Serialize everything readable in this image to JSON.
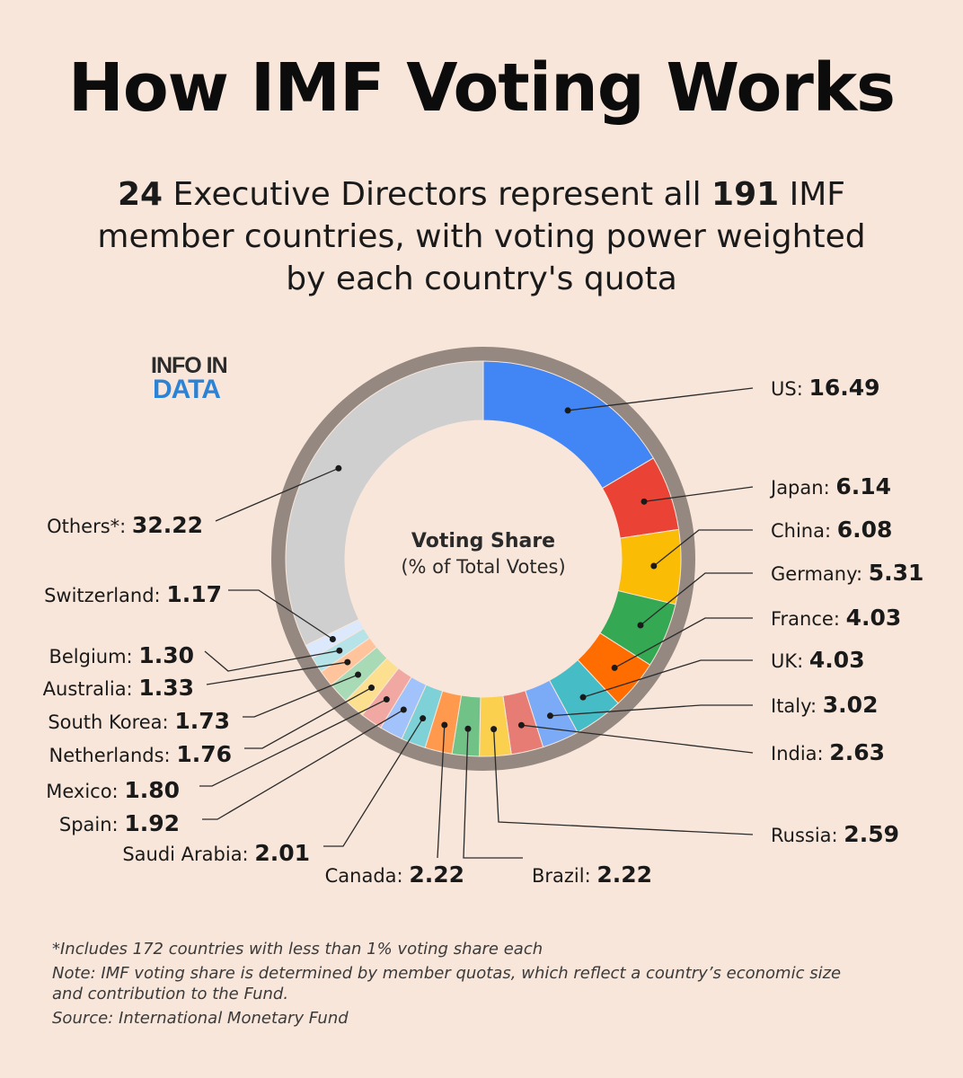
{
  "header": {
    "title": "How IMF Voting Works",
    "subtitle_num1": "24",
    "subtitle_part1": " Executive Directors represent all ",
    "subtitle_num2": "191",
    "subtitle_part2": " IMF member countries, with voting power weighted by each country's quota"
  },
  "logo": {
    "line1": "INFO IN",
    "line2": "DATA"
  },
  "center": {
    "title": "Voting Share",
    "subtitle": "(% of Total Votes)"
  },
  "chart_data": {
    "type": "pie",
    "donut": true,
    "slices": [
      {
        "label": "US",
        "value": 16.49,
        "display": "16.49",
        "color": "#4285F4"
      },
      {
        "label": "Japan",
        "value": 6.14,
        "display": "6.14",
        "color": "#EA4335"
      },
      {
        "label": "China",
        "value": 6.08,
        "display": "6.08",
        "color": "#FBBC05"
      },
      {
        "label": "Germany",
        "value": 5.31,
        "display": "5.31",
        "color": "#34A853"
      },
      {
        "label": "France",
        "value": 4.03,
        "display": "4.03",
        "color": "#FF6D01"
      },
      {
        "label": "UK",
        "value": 4.03,
        "display": "4.03",
        "color": "#46BDC6"
      },
      {
        "label": "Italy",
        "value": 3.02,
        "display": "3.02",
        "color": "#7BAAF7"
      },
      {
        "label": "India",
        "value": 2.63,
        "display": "2.63",
        "color": "#E67C73"
      },
      {
        "label": "Russia",
        "value": 2.59,
        "display": "2.59",
        "color": "#FCD04F"
      },
      {
        "label": "Brazil",
        "value": 2.22,
        "display": "2.22",
        "color": "#71C287"
      },
      {
        "label": "Canada",
        "value": 2.22,
        "display": "2.22",
        "color": "#FF994D"
      },
      {
        "label": "Saudi Arabia",
        "value": 2.01,
        "display": "2.01",
        "color": "#7ED1D7"
      },
      {
        "label": "Spain",
        "value": 1.92,
        "display": "1.92",
        "color": "#A1C2FA"
      },
      {
        "label": "Mexico",
        "value": 1.8,
        "display": "1.80",
        "color": "#F1A8A3"
      },
      {
        "label": "Netherlands",
        "value": 1.76,
        "display": "1.76",
        "color": "#FCE08F"
      },
      {
        "label": "South Korea",
        "value": 1.73,
        "display": "1.73",
        "color": "#A8DAB5"
      },
      {
        "label": "Australia",
        "value": 1.33,
        "display": "1.33",
        "color": "#FFC49B"
      },
      {
        "label": "Belgium",
        "value": 1.3,
        "display": "1.30",
        "color": "#B5E3E7"
      },
      {
        "label": "Switzerland",
        "value": 1.17,
        "display": "1.17",
        "color": "#DCE8FC"
      },
      {
        "label": "Others*",
        "value": 32.22,
        "display": "32.22",
        "color": "#CFCFCF"
      }
    ],
    "ring_color": "#948880"
  },
  "footnotes": {
    "note1": "*Includes 172 countries with less than 1% voting share each",
    "note2": "Note: IMF voting share is determined by member quotas, which reflect a country’s economic size and contribution to the Fund.",
    "source": "Source: International Monetary Fund"
  }
}
